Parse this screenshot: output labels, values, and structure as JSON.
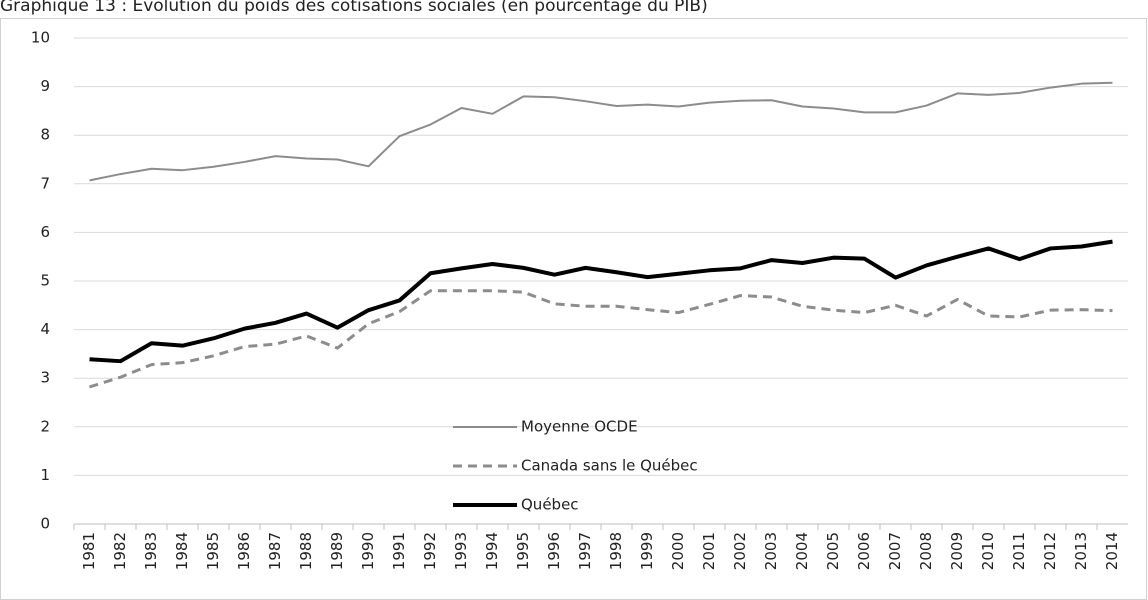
{
  "chart_data": {
    "type": "line",
    "title": "Graphique 13 : Évolution du poids des cotisations sociales (en pourcentage du PIB)",
    "categories": [
      "1981",
      "1982",
      "1983",
      "1984",
      "1985",
      "1986",
      "1987",
      "1988",
      "1989",
      "1990",
      "1991",
      "1992",
      "1993",
      "1994",
      "1995",
      "1996",
      "1997",
      "1998",
      "1999",
      "2000",
      "2001",
      "2002",
      "2003",
      "2004",
      "2005",
      "2006",
      "2007",
      "2008",
      "2009",
      "2010",
      "2011",
      "2012",
      "2013",
      "2014"
    ],
    "series": [
      {
        "name": "Moyenne OCDE",
        "color": "#8c8c8c",
        "line_style": "solid",
        "values": [
          7.07,
          7.2,
          7.31,
          7.28,
          7.35,
          7.45,
          7.57,
          7.52,
          7.5,
          7.36,
          7.98,
          8.22,
          8.56,
          8.44,
          8.8,
          8.78,
          8.7,
          8.6,
          8.63,
          8.59,
          8.67,
          8.71,
          8.72,
          8.59,
          8.55,
          8.47,
          8.47,
          8.61,
          8.86,
          8.83,
          8.87,
          8.98,
          9.06,
          9.08
        ]
      },
      {
        "name": "Canada sans le Québec",
        "color": "#8c8c8c",
        "line_style": "dashed",
        "values": [
          2.82,
          3.02,
          3.28,
          3.32,
          3.46,
          3.65,
          3.7,
          3.87,
          3.62,
          4.12,
          4.37,
          4.8,
          4.8,
          4.8,
          4.77,
          4.53,
          4.48,
          4.48,
          4.41,
          4.35,
          4.52,
          4.7,
          4.67,
          4.48,
          4.4,
          4.35,
          4.5,
          4.28,
          4.62,
          4.28,
          4.26,
          4.4,
          4.41,
          4.39
        ]
      },
      {
        "name": "Québec",
        "color": "#000000",
        "line_style": "bold",
        "values": [
          3.39,
          3.35,
          3.72,
          3.67,
          3.82,
          4.02,
          4.14,
          4.33,
          4.04,
          4.4,
          4.6,
          5.16,
          5.26,
          5.35,
          5.27,
          5.13,
          5.27,
          5.18,
          5.08,
          5.15,
          5.22,
          5.26,
          5.43,
          5.37,
          5.48,
          5.46,
          5.07,
          5.32,
          5.5,
          5.67,
          5.45,
          5.67,
          5.71,
          5.81
        ]
      }
    ],
    "ylim": [
      0,
      10
    ],
    "yticks": [
      0,
      1,
      2,
      3,
      4,
      5,
      6,
      7,
      8,
      9,
      10
    ],
    "grid": true,
    "legend": "lower center"
  }
}
